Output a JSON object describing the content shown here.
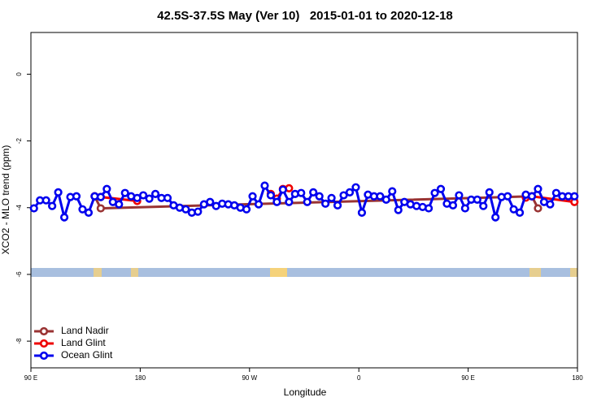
{
  "chart_data": {
    "type": "line",
    "title": "42.5S-37.5S May (Ver 10)   2015-01-01 to 2020-12-18",
    "x_label": "Longitude",
    "y_label": "XCO2 - MLO trend (ppm)",
    "xlim": [
      90,
      540
    ],
    "xticks": [
      {
        "value": 90,
        "label": "90 E"
      },
      180,
      {
        "value": 270,
        "label": "90 W"
      },
      {
        "value": 360,
        "label": "0"
      },
      {
        "value": 450,
        "label": "90 E"
      },
      {
        "value": 540,
        "label": "180"
      }
    ],
    "ylim": [
      -8.8,
      1.25
    ],
    "yticks": [
      -8,
      -6,
      -4,
      -2,
      0
    ],
    "legend": "bottom-left",
    "series": [
      {
        "name": "Land Nadir",
        "color": "#993333",
        "x": [
          142.5,
          147.5,
          502.5,
          507.5
        ],
        "values": [
          -3.66,
          -4.02,
          -3.66,
          -4.02
        ]
      },
      {
        "name": "Land Glint",
        "color": "#ee0000",
        "x": [
          142.5,
          147.5,
          177.5,
          182.5,
          287.5,
          292.5,
          297.5,
          302.5,
          307.5,
          497.5,
          502.5,
          537.5
        ],
        "values": [
          -3.66,
          -3.68,
          -3.8,
          null,
          -3.59,
          -3.73,
          -3.44,
          -3.42,
          null,
          -3.7,
          -3.66,
          -3.83
        ]
      },
      {
        "name": "Ocean Glint",
        "color": "#0000ee",
        "x": [
          92.5,
          97.5,
          102.5,
          107.5,
          112.5,
          117.5,
          122.5,
          127.5,
          132.5,
          137.5,
          142.5,
          147.5,
          152.5,
          157.5,
          162.5,
          167.5,
          172.5,
          177.5,
          182.5,
          187.5,
          192.5,
          197.5,
          202.5,
          207.5,
          212.5,
          217.5,
          222.5,
          227.5,
          232.5,
          237.5,
          242.5,
          247.5,
          252.5,
          257.5,
          262.5,
          267.5,
          272.5,
          277.5,
          282.5,
          287.5,
          292.5,
          297.5,
          302.5,
          307.5,
          312.5,
          317.5,
          322.5,
          327.5,
          332.5,
          337.5,
          342.5,
          347.5,
          352.5,
          357.5,
          362.5,
          367.5,
          372.5,
          377.5,
          382.5,
          387.5,
          392.5,
          397.5,
          402.5,
          407.5,
          412.5,
          417.5,
          422.5,
          427.5,
          432.5,
          437.5,
          442.5,
          447.5,
          452.5,
          457.5,
          462.5,
          467.5,
          472.5,
          477.5,
          482.5,
          487.5,
          492.5,
          497.5,
          502.5,
          507.5,
          512.5,
          517.5,
          522.5,
          527.5,
          532.5,
          537.5
        ],
        "values": [
          -4.02,
          -3.78,
          -3.78,
          -3.95,
          -3.54,
          -4.29,
          -3.68,
          -3.66,
          -4.05,
          -4.15,
          -3.66,
          -3.68,
          -3.44,
          -3.83,
          -3.9,
          -3.56,
          -3.66,
          -3.71,
          -3.63,
          -3.73,
          -3.59,
          -3.71,
          -3.71,
          -3.93,
          -4.0,
          -4.05,
          -4.15,
          -4.12,
          -3.9,
          -3.83,
          -3.95,
          -3.88,
          -3.9,
          -3.93,
          -4.0,
          -4.05,
          -3.66,
          -3.9,
          -3.34,
          -3.63,
          -3.83,
          -3.46,
          -3.83,
          -3.59,
          -3.56,
          -3.83,
          -3.54,
          -3.66,
          -3.88,
          -3.71,
          -3.93,
          -3.63,
          -3.54,
          -3.39,
          -4.15,
          -3.61,
          -3.66,
          -3.66,
          -3.76,
          -3.51,
          -4.07,
          -3.83,
          -3.9,
          -3.95,
          -3.98,
          -4.02,
          -3.56,
          -3.44,
          -3.88,
          -3.93,
          -3.63,
          -4.02,
          -3.76,
          -3.76,
          -3.95,
          -3.54,
          -4.29,
          -3.68,
          -3.66,
          -4.05,
          -4.15,
          -3.61,
          -3.66,
          -3.44,
          -3.83,
          -3.9,
          -3.56,
          -3.66,
          -3.66,
          -3.66
        ]
      }
    ]
  }
}
